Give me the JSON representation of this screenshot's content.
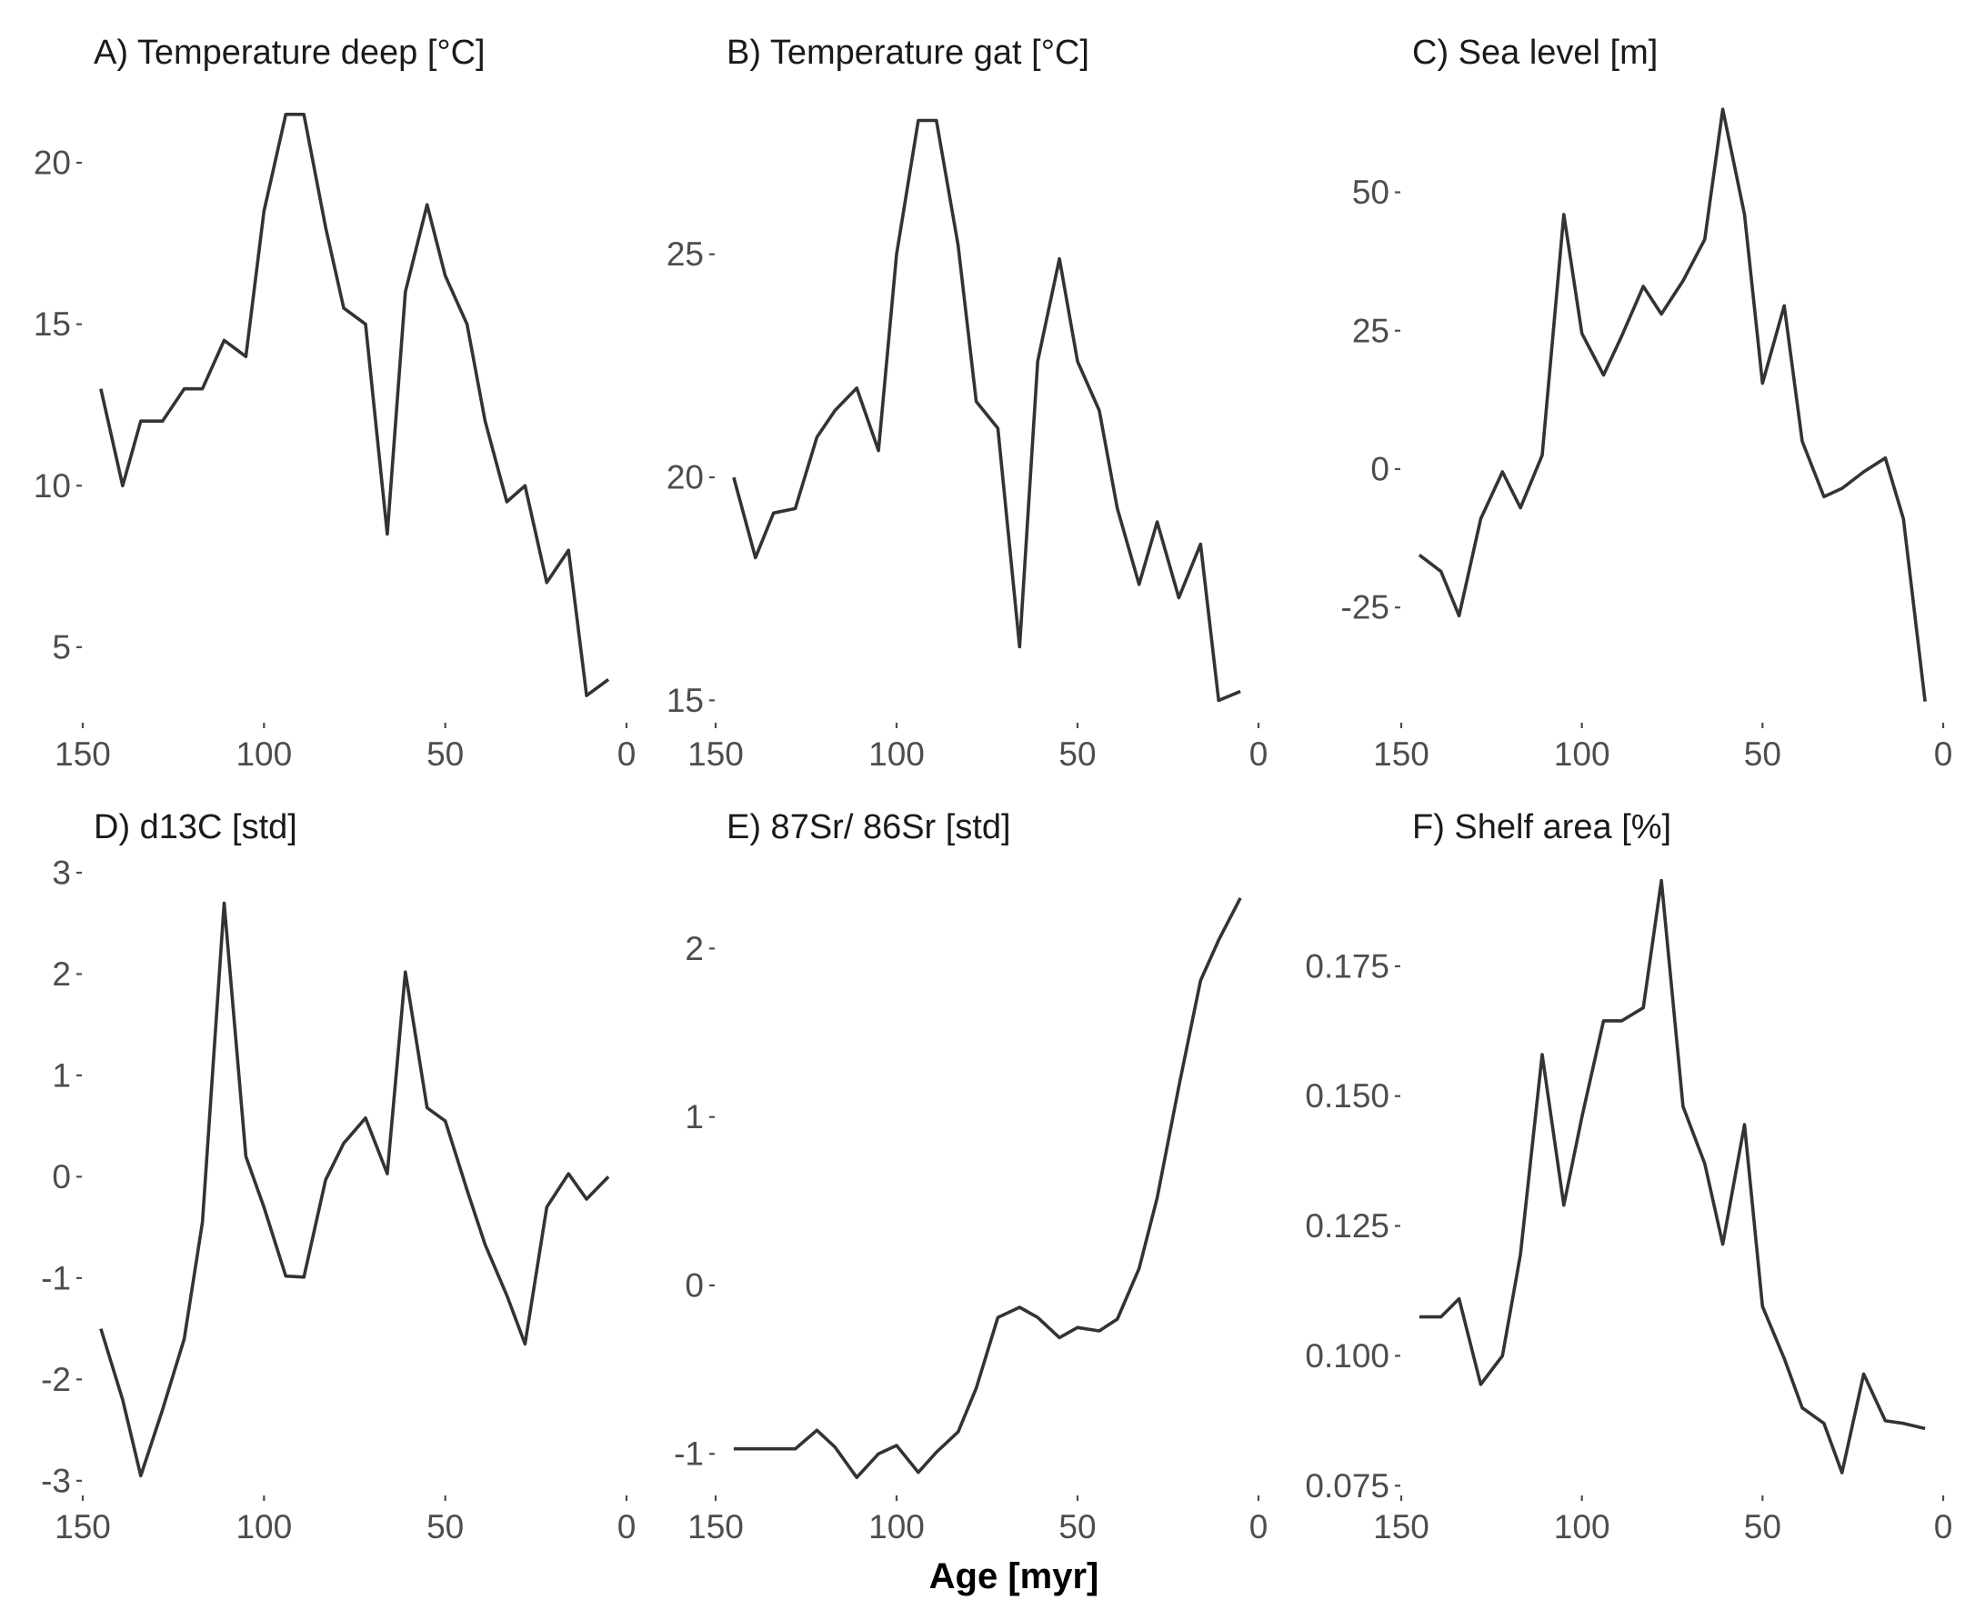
{
  "figure": {
    "xlabel": "Age [myr]",
    "line_color": "#333333",
    "text_color": "#1a1a1a",
    "tick_color": "#4d4d4d",
    "background": "#ffffff"
  },
  "chart_data": [
    {
      "type": "line",
      "title": "A) Temperature deep [°C]",
      "xlabel": "Age [myr]",
      "ylabel": "",
      "xlim": [
        150,
        0
      ],
      "ylim": [
        2.8,
        22
      ],
      "x_ticks": [
        150,
        100,
        50,
        0
      ],
      "y_ticks": [
        5,
        10,
        15,
        20
      ],
      "grid": false,
      "x": [
        145,
        139,
        134,
        128,
        122,
        117,
        111,
        105,
        100,
        94,
        89,
        83,
        78,
        72,
        66,
        61,
        55,
        50,
        44,
        39,
        33,
        28,
        22,
        16,
        11,
        5
      ],
      "y": [
        13.0,
        10.0,
        12.0,
        12.0,
        13.0,
        13.0,
        14.5,
        14.0,
        18.5,
        21.5,
        21.5,
        18.0,
        15.5,
        15.0,
        8.5,
        16.0,
        18.7,
        16.5,
        15.0,
        12.0,
        9.5,
        10.0,
        7.0,
        8.0,
        3.5,
        4.0
      ]
    },
    {
      "type": "line",
      "title": "B) Temperature gat [°C]",
      "xlabel": "Age [myr]",
      "ylabel": "",
      "xlim": [
        150,
        0
      ],
      "ylim": [
        14.6,
        28.5
      ],
      "x_ticks": [
        150,
        100,
        50,
        0
      ],
      "y_ticks": [
        15,
        20,
        25
      ],
      "grid": false,
      "x": [
        145,
        139,
        134,
        128,
        122,
        117,
        111,
        105,
        100,
        94,
        89,
        83,
        78,
        72,
        66,
        61,
        55,
        50,
        44,
        39,
        33,
        28,
        22,
        16,
        11,
        5
      ],
      "y": [
        20.0,
        18.2,
        19.2,
        19.3,
        20.9,
        21.5,
        22.0,
        20.6,
        25.0,
        28.0,
        28.0,
        25.2,
        21.7,
        21.1,
        16.2,
        22.6,
        24.9,
        22.6,
        21.5,
        19.3,
        17.6,
        19.0,
        17.3,
        18.5,
        15.0,
        15.2
      ]
    },
    {
      "type": "line",
      "title": "C) Sea level [m]",
      "xlabel": "Age [myr]",
      "ylabel": "",
      "xlim": [
        150,
        0
      ],
      "ylim": [
        -45,
        67
      ],
      "x_ticks": [
        150,
        100,
        50,
        0
      ],
      "y_ticks": [
        -25,
        0,
        25,
        50
      ],
      "grid": false,
      "x": [
        145,
        139,
        134,
        128,
        122,
        117,
        111,
        105,
        100,
        94,
        89,
        83,
        78,
        72,
        66,
        61,
        55,
        50,
        44,
        39,
        33,
        28,
        22,
        16,
        11,
        5
      ],
      "y": [
        -15.5,
        -18.5,
        -26.5,
        -9.0,
        -0.5,
        -7.0,
        2.5,
        46.0,
        24.5,
        17.0,
        24.0,
        33.0,
        28.0,
        34.0,
        41.5,
        65.0,
        46.0,
        15.5,
        29.5,
        5.0,
        -5.0,
        -3.5,
        -0.5,
        2.0,
        -9.0,
        -42.0
      ]
    },
    {
      "type": "line",
      "title": "D) d13C [std]",
      "xlabel": "Age [myr]",
      "ylabel": "",
      "xlim": [
        150,
        0
      ],
      "ylim": [
        -3.1,
        3.0
      ],
      "x_ticks": [
        150,
        100,
        50,
        0
      ],
      "y_ticks": [
        -3,
        -2,
        -1,
        0,
        1,
        2,
        3
      ],
      "grid": false,
      "x": [
        145,
        139,
        134,
        128,
        122,
        117,
        111,
        105,
        100,
        94,
        89,
        83,
        78,
        72,
        66,
        61,
        55,
        50,
        44,
        39,
        33,
        28,
        22,
        16,
        11,
        5
      ],
      "y": [
        -1.5,
        -2.2,
        -2.95,
        -2.3,
        -1.6,
        -0.45,
        2.7,
        0.2,
        -0.3,
        -0.98,
        -0.99,
        -0.03,
        0.33,
        0.58,
        0.03,
        2.02,
        0.68,
        0.55,
        -0.13,
        -0.67,
        -1.17,
        -1.65,
        -0.3,
        0.03,
        -0.22,
        0.0
      ]
    },
    {
      "type": "line",
      "title": "E) 87Sr/ 86Sr [std]",
      "xlabel": "Age [myr]",
      "ylabel": "",
      "xlim": [
        150,
        0
      ],
      "ylim": [
        -1.22,
        2.45
      ],
      "x_ticks": [
        150,
        100,
        50,
        0
      ],
      "y_ticks": [
        -1,
        0,
        1,
        2
      ],
      "grid": false,
      "x": [
        145,
        139,
        134,
        128,
        122,
        117,
        111,
        105,
        100,
        94,
        89,
        83,
        78,
        72,
        66,
        61,
        55,
        50,
        44,
        39,
        33,
        28,
        22,
        16,
        11,
        5
      ],
      "y": [
        -0.97,
        -0.97,
        -0.97,
        -0.97,
        -0.86,
        -0.96,
        -1.14,
        -1.0,
        -0.95,
        -1.11,
        -0.99,
        -0.87,
        -0.61,
        -0.19,
        -0.13,
        -0.19,
        -0.31,
        -0.25,
        -0.27,
        -0.2,
        0.1,
        0.52,
        1.18,
        1.81,
        2.05,
        2.3
      ]
    },
    {
      "type": "line",
      "title": "F) Shelf area [%]",
      "xlabel": "Age [myr]",
      "ylabel": "",
      "xlim": [
        150,
        0
      ],
      "ylim": [
        0.074,
        0.193
      ],
      "x_ticks": [
        150,
        100,
        50,
        0
      ],
      "y_ticks": [
        0.075,
        0.1,
        0.125,
        0.15,
        0.175
      ],
      "y_tick_labels": [
        "0.075",
        "0.100",
        "0.125",
        "0.150",
        "0.175"
      ],
      "grid": false,
      "x": [
        145,
        139,
        134,
        128,
        122,
        117,
        111,
        105,
        100,
        94,
        89,
        83,
        78,
        72,
        66,
        61,
        55,
        50,
        44,
        39,
        33,
        28,
        22,
        16,
        11,
        5
      ],
      "y": [
        0.1075,
        0.1075,
        0.111,
        0.0945,
        0.1,
        0.1195,
        0.158,
        0.129,
        0.146,
        0.1645,
        0.1645,
        0.167,
        0.1915,
        0.148,
        0.137,
        0.1215,
        0.1445,
        0.1095,
        0.0995,
        0.09,
        0.087,
        0.0775,
        0.0965,
        0.0875,
        0.087,
        0.086
      ]
    }
  ]
}
